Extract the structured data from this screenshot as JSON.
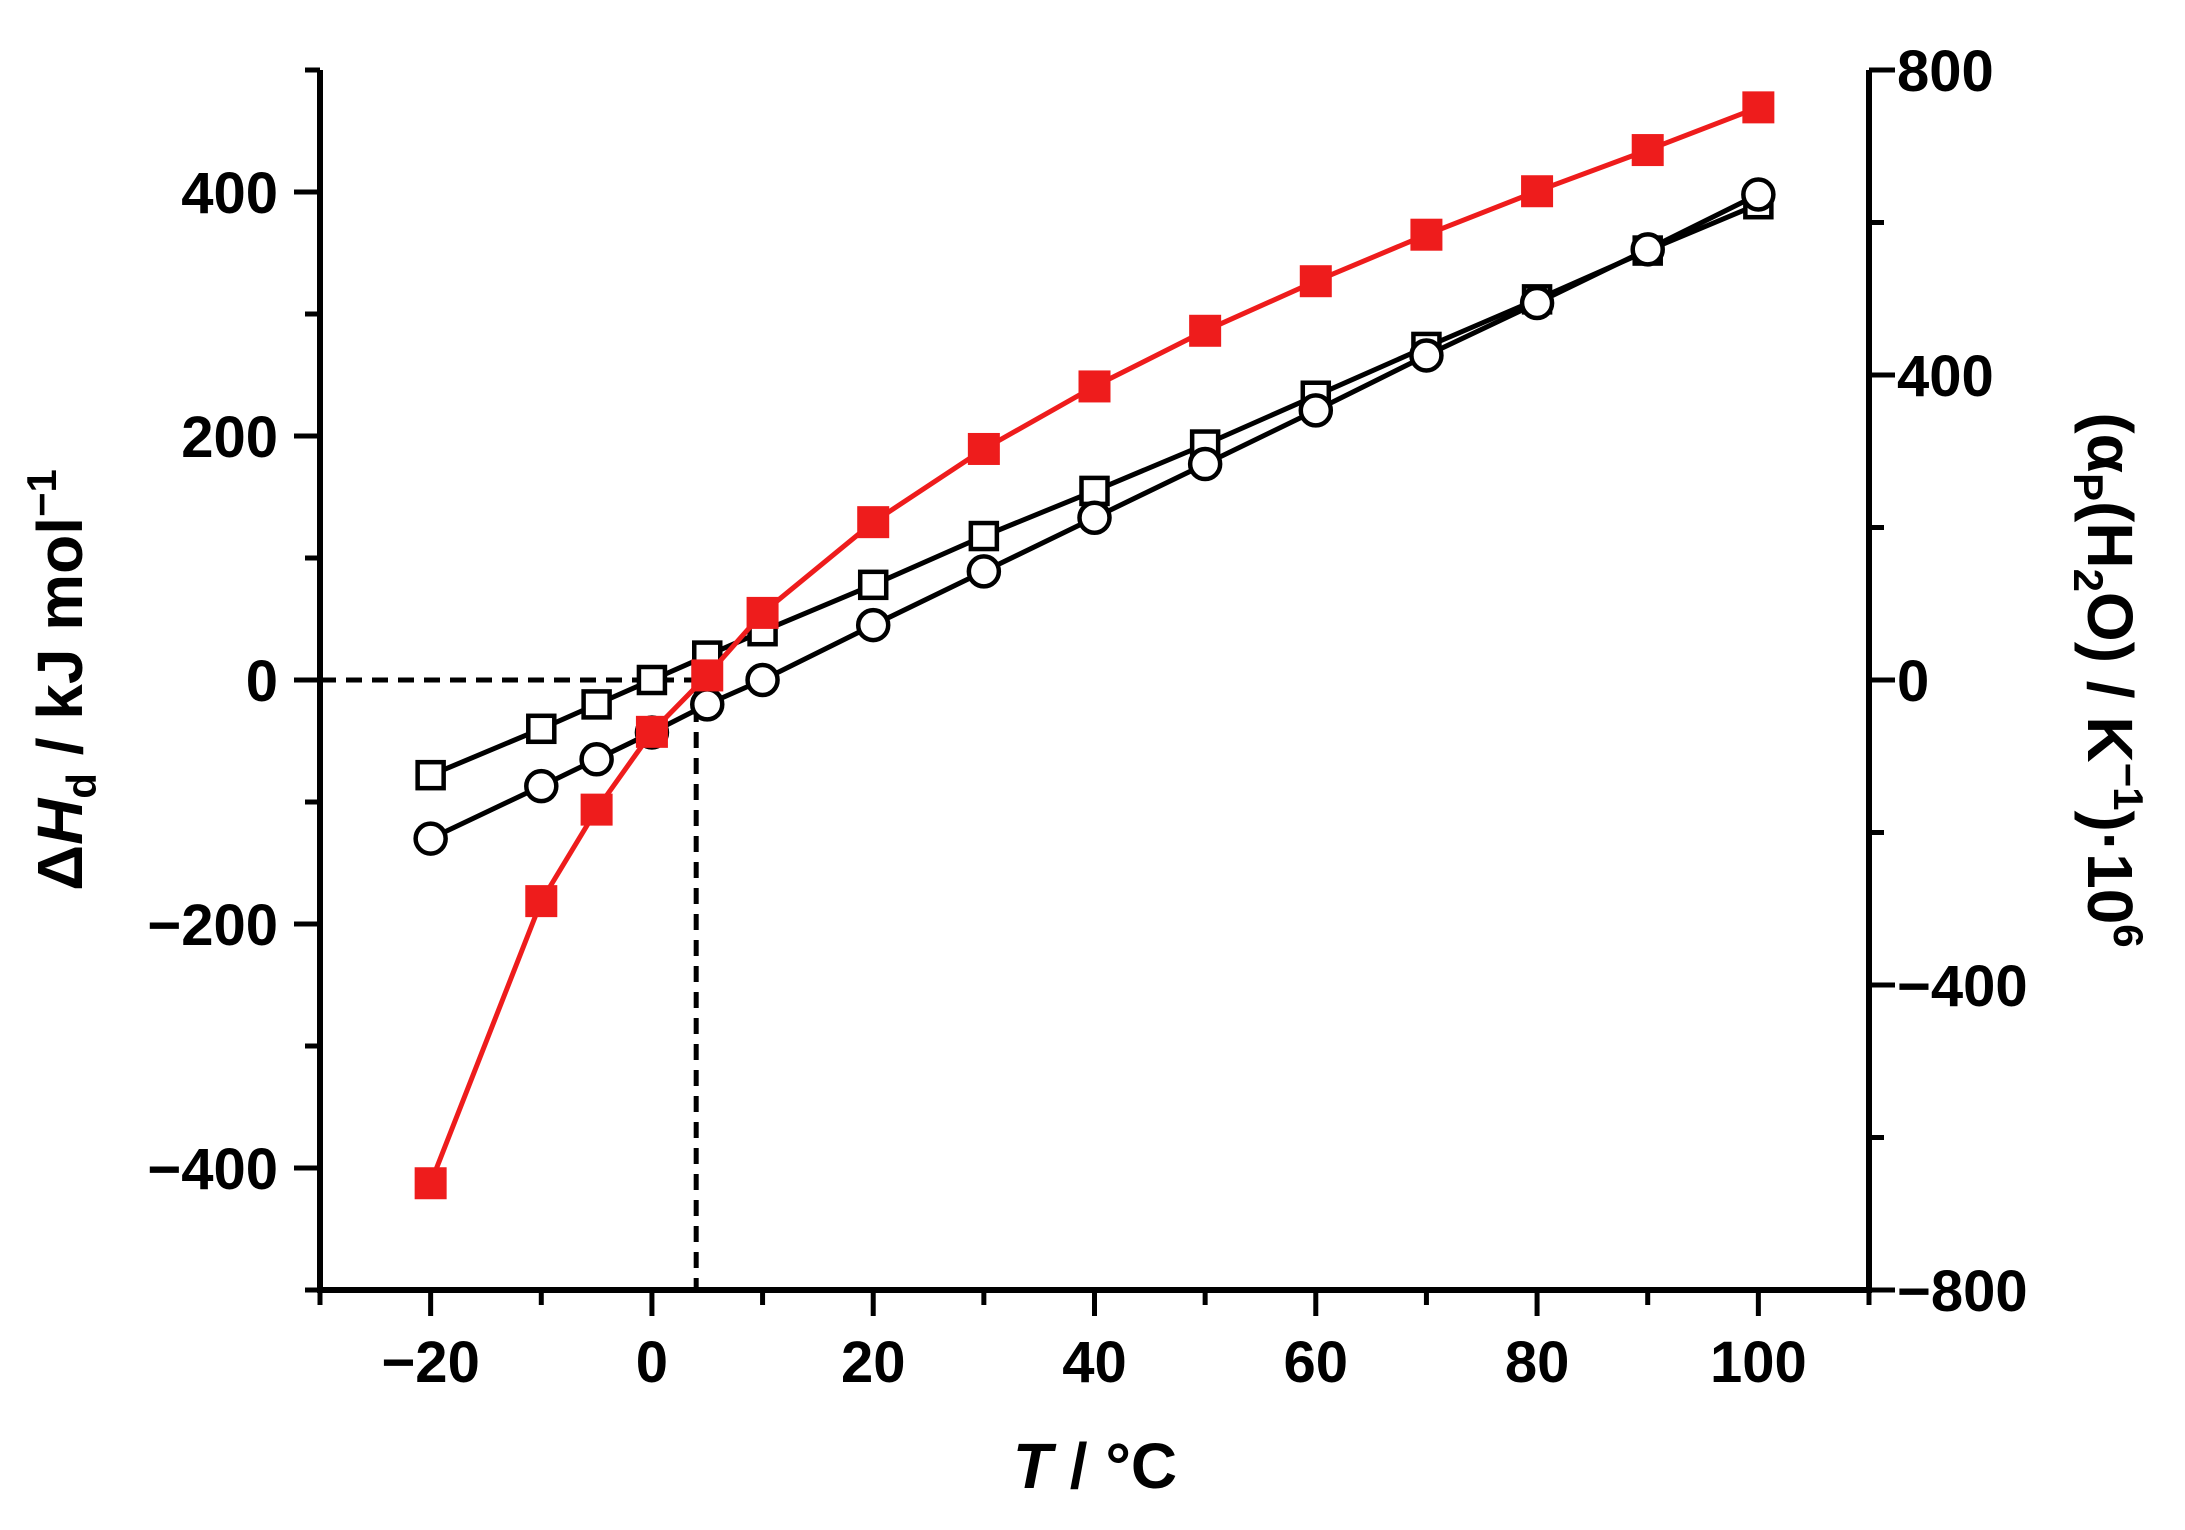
{
  "chart_data": {
    "type": "line",
    "xlabel": {
      "var": "T",
      "unit": " / °C"
    },
    "ylabel_left": {
      "delta": "Δ",
      "var": "H",
      "sub": "d",
      "unit": " / kJ mol",
      "sup": "−1"
    },
    "ylabel_right": {
      "open": "(α",
      "sub1": "P",
      "mid": "(H",
      "sub2": "2",
      "close": "O) / K",
      "sup1": "−1",
      "end": ")·10",
      "sup2": "6"
    },
    "xlim": [
      -30,
      110
    ],
    "ylim_left": [
      -500,
      500
    ],
    "ylim_right": [
      -800,
      800
    ],
    "x_ticks": [
      -20,
      0,
      20,
      40,
      60,
      80,
      100
    ],
    "x_tick_labels": [
      "−20",
      "0",
      "20",
      "40",
      "60",
      "80",
      "100"
    ],
    "y_left_ticks": [
      -400,
      -200,
      0,
      200,
      400
    ],
    "y_left_tick_labels": [
      "−400",
      "−200",
      "0",
      "200",
      "400"
    ],
    "y_right_ticks": [
      -800,
      -400,
      0,
      400,
      800
    ],
    "y_right_tick_labels": [
      "−800",
      "−400",
      "0",
      "400",
      "800"
    ],
    "series": [
      {
        "name": "ΔHd (open squares)",
        "marker": "open-square",
        "color": "#000000",
        "axis": "left",
        "x": [
          -20,
          -10,
          -5,
          0,
          5,
          10,
          20,
          30,
          40,
          50,
          60,
          70,
          80,
          90,
          100
        ],
        "y": [
          -78,
          -40,
          -20,
          0,
          20,
          40,
          78,
          118,
          155,
          193,
          233,
          273,
          312,
          352,
          390
        ]
      },
      {
        "name": "ΔHd (open circles)",
        "marker": "open-circle",
        "color": "#000000",
        "axis": "left",
        "x": [
          -20,
          -10,
          -5,
          0,
          5,
          10,
          20,
          30,
          40,
          50,
          60,
          70,
          80,
          90,
          100
        ],
        "y": [
          -130,
          -87,
          -65,
          -43,
          -20,
          0,
          45,
          89,
          133,
          177,
          221,
          266,
          309,
          353,
          398
        ]
      },
      {
        "name": "αP(H2O)·10^6",
        "marker": "filled-square",
        "color": "#ee1c1c",
        "axis": "right",
        "x": [
          -20,
          -10,
          -5,
          0,
          5,
          10,
          20,
          30,
          40,
          50,
          60,
          70,
          80,
          90,
          100
        ],
        "y": [
          -660,
          -290,
          -170,
          -68,
          6,
          88,
          207,
          303,
          385,
          458,
          523,
          584,
          641,
          695,
          751
        ]
      }
    ],
    "reference_lines": {
      "color": "#000000",
      "x": 4,
      "y_left": 0
    }
  }
}
